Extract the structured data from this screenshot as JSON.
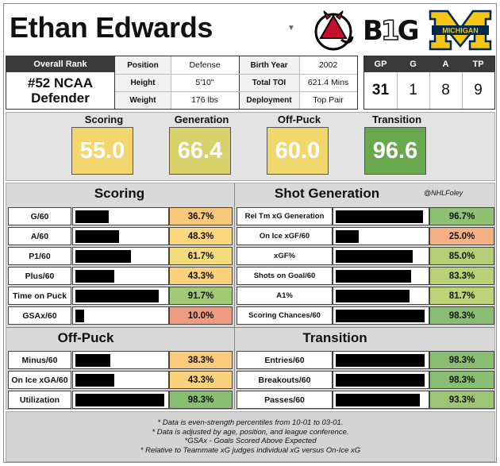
{
  "player": {
    "name": "Ethan Edwards",
    "overall_rank_label": "Overall Rank",
    "overall_rank_line1": "#52 NCAA",
    "overall_rank_line2": "Defender"
  },
  "bio": {
    "position_label": "Position",
    "position": "Defense",
    "height_label": "Height",
    "height": "5'10\"",
    "weight_label": "Weight",
    "weight": "176 lbs",
    "birth_year_label": "Birth Year",
    "birth_year": "2002",
    "toi_label": "Total TOI",
    "toi": "621.4 Mins",
    "deployment_label": "Deployment",
    "deployment": "Top Pair"
  },
  "stats": {
    "headers": [
      "GP",
      "G",
      "A",
      "TP"
    ],
    "values": [
      "31",
      "1",
      "8",
      "9"
    ]
  },
  "logos": {
    "big_ten_b": "B",
    "big_ten_1": "1",
    "big_ten_g": "G",
    "michigan_wordmark": "MICHIGAN"
  },
  "grades": [
    {
      "label": "Scoring",
      "value": "55.0",
      "color": "#f3d66d"
    },
    {
      "label": "Generation",
      "value": "66.4",
      "color": "#d9d16a"
    },
    {
      "label": "Off-Puck",
      "value": "60.0",
      "color": "#f0d86c"
    },
    {
      "label": "Transition",
      "value": "96.6",
      "color": "#6aa84f"
    }
  ],
  "panels": {
    "scoring": {
      "title": "Scoring",
      "rows": [
        {
          "label": "G/60",
          "pct": "36.7%",
          "value": 36.7,
          "color": "#f8c97a"
        },
        {
          "label": "A/60",
          "pct": "48.3%",
          "value": 48.3,
          "color": "#fbd87c"
        },
        {
          "label": "P1/60",
          "pct": "61.7%",
          "value": 61.7,
          "color": "#f4dc7c"
        },
        {
          "label": "Plus/60",
          "pct": "43.3%",
          "value": 43.3,
          "color": "#fbd17b"
        },
        {
          "label": "Time on Puck",
          "pct": "91.7%",
          "value": 91.7,
          "color": "#a3c975"
        },
        {
          "label": "GSAx/60",
          "pct": "10.0%",
          "value": 10.0,
          "color": "#ee9b82"
        }
      ]
    },
    "shot_generation": {
      "title": "Shot Generation",
      "handle": "@NHLFoley",
      "rows": [
        {
          "label": "Rel Tm xG Generation",
          "pct": "96.7%",
          "value": 96.7,
          "color": "#91c174"
        },
        {
          "label": "On Ice xGF/60",
          "pct": "25.0%",
          "value": 25.0,
          "color": "#f4b183"
        },
        {
          "label": "xGF%",
          "pct": "85.0%",
          "value": 85.0,
          "color": "#b4cf76"
        },
        {
          "label": "Shots on Goal/60",
          "pct": "83.3%",
          "value": 83.3,
          "color": "#b9d177"
        },
        {
          "label": "A1%",
          "pct": "81.7%",
          "value": 81.7,
          "color": "#bed377"
        },
        {
          "label": "Scoring Chances/60",
          "pct": "98.3%",
          "value": 98.3,
          "color": "#89bd72"
        }
      ]
    },
    "off_puck": {
      "title": "Off-Puck",
      "rows": [
        {
          "label": "Minus/60",
          "pct": "38.3%",
          "value": 38.3,
          "color": "#f9cb7a"
        },
        {
          "label": "On Ice xGA/60",
          "pct": "43.3%",
          "value": 43.3,
          "color": "#fbd17b"
        },
        {
          "label": "Utilization",
          "pct": "98.3%",
          "value": 98.3,
          "color": "#89bd72"
        }
      ]
    },
    "transition": {
      "title": "Transition",
      "rows": [
        {
          "label": "Entries/60",
          "pct": "98.3%",
          "value": 98.3,
          "color": "#89bd72"
        },
        {
          "label": "Breakouts/60",
          "pct": "98.3%",
          "value": 98.3,
          "color": "#89bd72"
        },
        {
          "label": "Passes/60",
          "pct": "93.3%",
          "value": 93.3,
          "color": "#9cc574"
        }
      ]
    }
  },
  "notes": [
    "* Data is even-strength percentiles from 10-01 to 03-01.",
    "* Data is adjusted by age, position, and league conference.",
    "*GSAx - Goals Scored Above Expected",
    "* Relative to Teammate xG judges individual xG versus On-Ice xG"
  ]
}
